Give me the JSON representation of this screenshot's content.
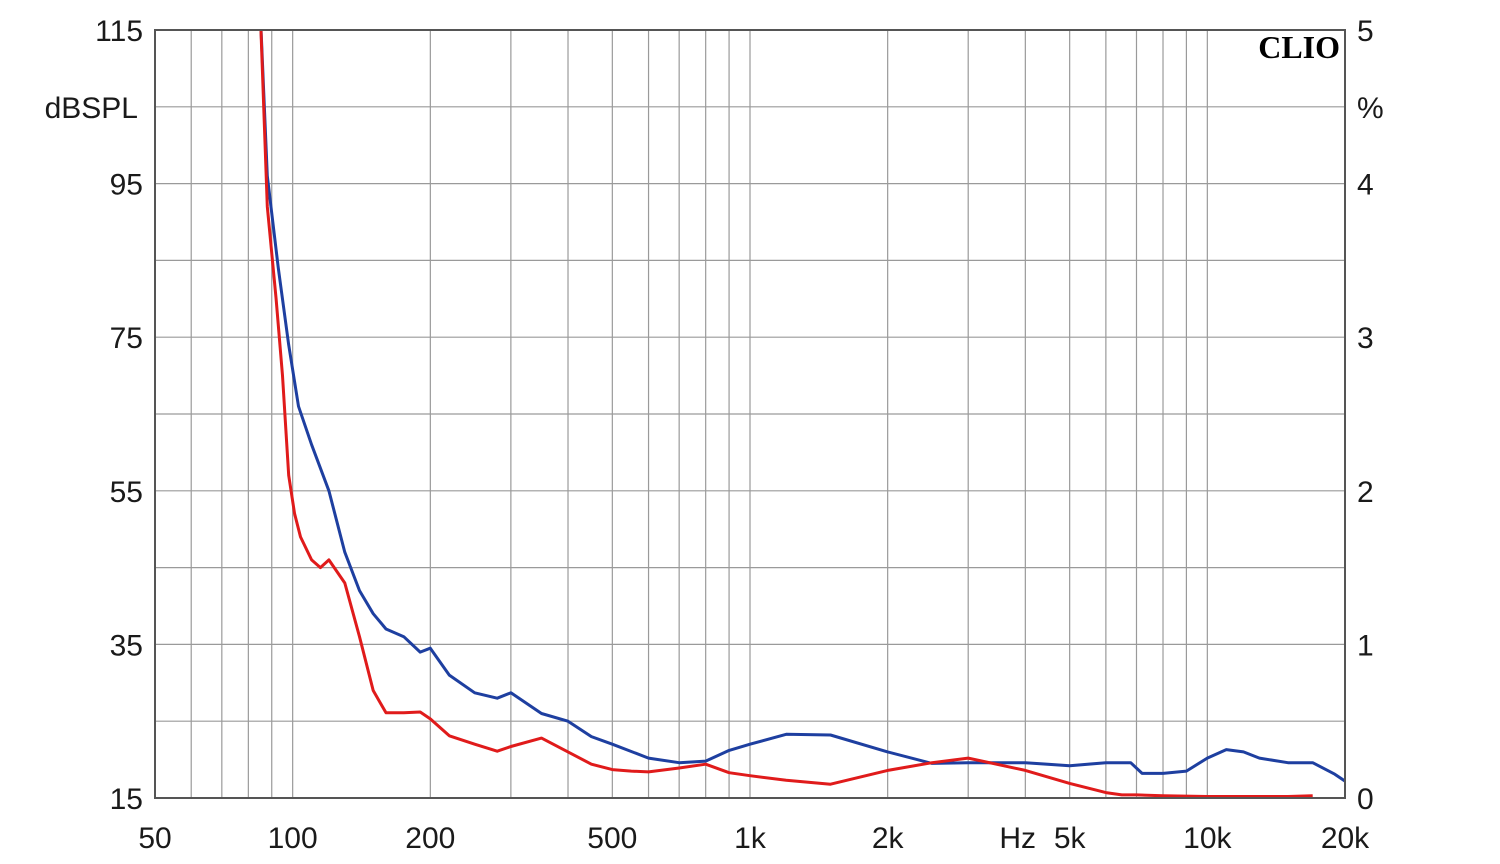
{
  "chart_data": {
    "type": "line",
    "x_scale": "log",
    "xlim": [
      50,
      20000
    ],
    "ylim_left": [
      15,
      115
    ],
    "ylim_right": [
      0,
      5
    ],
    "ylabel_left": "dBSPL",
    "ylabel_right": "%",
    "xlabel": "Hz",
    "brand_label": "CLIO",
    "grid": true,
    "x_tick_labels": [
      {
        "label": "50",
        "value": 50
      },
      {
        "label": "100",
        "value": 100
      },
      {
        "label": "200",
        "value": 200
      },
      {
        "label": "500",
        "value": 500
      },
      {
        "label": "1k",
        "value": 1000
      },
      {
        "label": "2k",
        "value": 2000
      },
      {
        "label": "5k",
        "value": 5000
      },
      {
        "label": "10k",
        "value": 10000
      },
      {
        "label": "20k",
        "value": 20000
      }
    ],
    "y_left_tick_labels": [
      {
        "label": "115",
        "value": 115
      },
      {
        "label": "95",
        "value": 95
      },
      {
        "label": "75",
        "value": 75
      },
      {
        "label": "55",
        "value": 55
      },
      {
        "label": "35",
        "value": 35
      },
      {
        "label": "15",
        "value": 15
      }
    ],
    "y_right_tick_labels": [
      {
        "label": "5",
        "value": 5
      },
      {
        "label": "4",
        "value": 4
      },
      {
        "label": "3",
        "value": 3
      },
      {
        "label": "2",
        "value": 2
      },
      {
        "label": "1",
        "value": 1
      },
      {
        "label": "0",
        "value": 0
      }
    ],
    "series": [
      {
        "color": "#1e3fa0",
        "axis": "left",
        "x": [
          85,
          88,
          93,
          98,
          103,
          110,
          120,
          130,
          140,
          150,
          160,
          175,
          190,
          200,
          220,
          250,
          280,
          300,
          350,
          400,
          450,
          500,
          600,
          700,
          800,
          900,
          1000,
          1200,
          1500,
          2000,
          2500,
          3000,
          4000,
          5000,
          6000,
          6800,
          7200,
          8000,
          9000,
          10000,
          11000,
          12000,
          13000,
          15000,
          17000,
          19000,
          20000
        ],
        "y": [
          117,
          96,
          84,
          74,
          66,
          61,
          55,
          47,
          42,
          39,
          37,
          36,
          34,
          34.5,
          31,
          28.7,
          28,
          28.7,
          26,
          25,
          23,
          22,
          20.2,
          19.6,
          19.8,
          21.2,
          22,
          23.3,
          23.2,
          21,
          19.5,
          19.6,
          19.6,
          19.2,
          19.6,
          19.6,
          18.2,
          18.2,
          18.5,
          20.2,
          21.3,
          21,
          20.2,
          19.6,
          19.6,
          18.1,
          17.2
        ]
      },
      {
        "color": "#e01b1b",
        "axis": "left",
        "x": [
          85,
          88,
          92,
          95,
          98,
          101,
          104,
          110,
          115,
          120,
          130,
          140,
          150,
          160,
          175,
          190,
          200,
          220,
          250,
          280,
          300,
          350,
          400,
          450,
          500,
          550,
          600,
          700,
          800,
          900,
          1000,
          1200,
          1500,
          2000,
          2500,
          3000,
          4000,
          5000,
          6000,
          6500,
          7000,
          8000,
          10000,
          12000,
          15000,
          17000
        ],
        "y": [
          117,
          92,
          80,
          70,
          57,
          52,
          49,
          46,
          45,
          46,
          43,
          36,
          29,
          26.1,
          26.1,
          26.2,
          25.3,
          23.1,
          22,
          21.1,
          21.7,
          22.8,
          21,
          19.4,
          18.7,
          18.5,
          18.4,
          18.9,
          19.4,
          18.3,
          17.9,
          17.3,
          16.8,
          18.6,
          19.6,
          20.2,
          18.6,
          16.9,
          15.7,
          15.4,
          15.4,
          15.3,
          15.2,
          15.2,
          15.2,
          15.3
        ]
      }
    ]
  }
}
